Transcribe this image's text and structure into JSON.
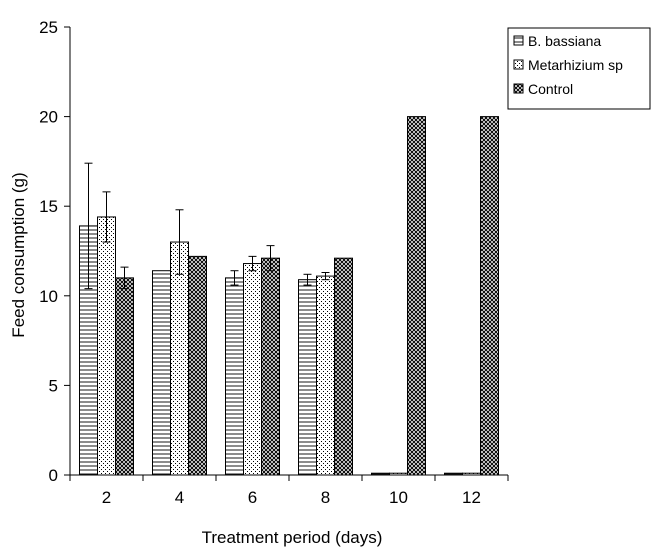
{
  "chart_data": {
    "type": "bar",
    "title": "",
    "xlabel": "Treatment period (days)",
    "ylabel": "Feed consumption (g)",
    "categories": [
      "2",
      "4",
      "6",
      "8",
      "10",
      "12"
    ],
    "ylim": [
      0,
      25
    ],
    "yticks": [
      "0",
      "5",
      "10",
      "15",
      "20",
      "25"
    ],
    "grid": false,
    "legend_position": "top-right",
    "series": [
      {
        "name": "B. bassiana",
        "pattern": "horizontal-lines",
        "values": [
          13.9,
          11.4,
          11.0,
          10.9,
          0.1,
          0.1
        ],
        "errors": [
          3.5,
          0.0,
          0.4,
          0.3,
          0.0,
          0.0
        ]
      },
      {
        "name": "Metarhizium sp",
        "pattern": "dots",
        "values": [
          14.4,
          13.0,
          11.8,
          11.1,
          0.1,
          0.1
        ],
        "errors": [
          1.4,
          1.8,
          0.4,
          0.2,
          0.0,
          0.0
        ]
      },
      {
        "name": "Control",
        "pattern": "crosshatch",
        "values": [
          11.0,
          12.2,
          12.1,
          12.1,
          20.0,
          20.0
        ],
        "errors": [
          0.6,
          0.0,
          0.7,
          0.0,
          0.0,
          0.0
        ]
      }
    ]
  }
}
